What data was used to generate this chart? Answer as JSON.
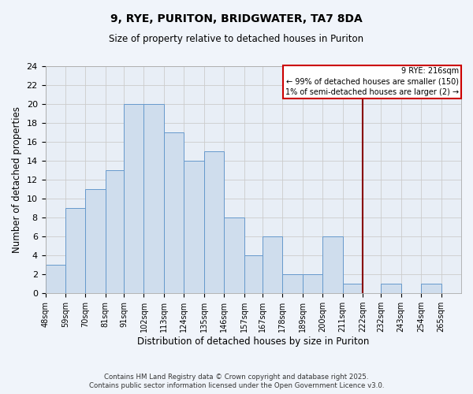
{
  "title": "9, RYE, PURITON, BRIDGWATER, TA7 8DA",
  "subtitle": "Size of property relative to detached houses in Puriton",
  "xlabel": "Distribution of detached houses by size in Puriton",
  "ylabel": "Number of detached properties",
  "bin_labels": [
    "48sqm",
    "59sqm",
    "70sqm",
    "81sqm",
    "91sqm",
    "102sqm",
    "113sqm",
    "124sqm",
    "135sqm",
    "146sqm",
    "157sqm",
    "167sqm",
    "178sqm",
    "189sqm",
    "200sqm",
    "211sqm",
    "222sqm",
    "232sqm",
    "243sqm",
    "254sqm",
    "265sqm"
  ],
  "bar_values": [
    3,
    9,
    11,
    13,
    20,
    20,
    17,
    14,
    15,
    8,
    4,
    6,
    2,
    2,
    6,
    1,
    0,
    1,
    0,
    1,
    0
  ],
  "bar_color": "#cfdded",
  "bar_edge_color": "#6699cc",
  "grid_color": "#cccccc",
  "background_color": "#e8eef6",
  "fig_background": "#f0f4fa",
  "vline_color": "#880000",
  "annotation_title": "9 RYE: 216sqm",
  "annotation_line1": "← 99% of detached houses are smaller (150)",
  "annotation_line2": "1% of semi-detached houses are larger (2) →",
  "annotation_box_color": "#ffffff",
  "annotation_box_edge": "#cc0000",
  "ylim": [
    0,
    24
  ],
  "yticks": [
    0,
    2,
    4,
    6,
    8,
    10,
    12,
    14,
    16,
    18,
    20,
    22,
    24
  ],
  "footnote1": "Contains HM Land Registry data © Crown copyright and database right 2025.",
  "footnote2": "Contains public sector information licensed under the Open Government Licence v3.0.",
  "bin_edges": [
    48,
    59,
    70,
    81,
    91,
    102,
    113,
    124,
    135,
    146,
    157,
    167,
    178,
    189,
    200,
    211,
    222,
    232,
    243,
    254,
    265,
    276
  ],
  "vline_x": 222
}
